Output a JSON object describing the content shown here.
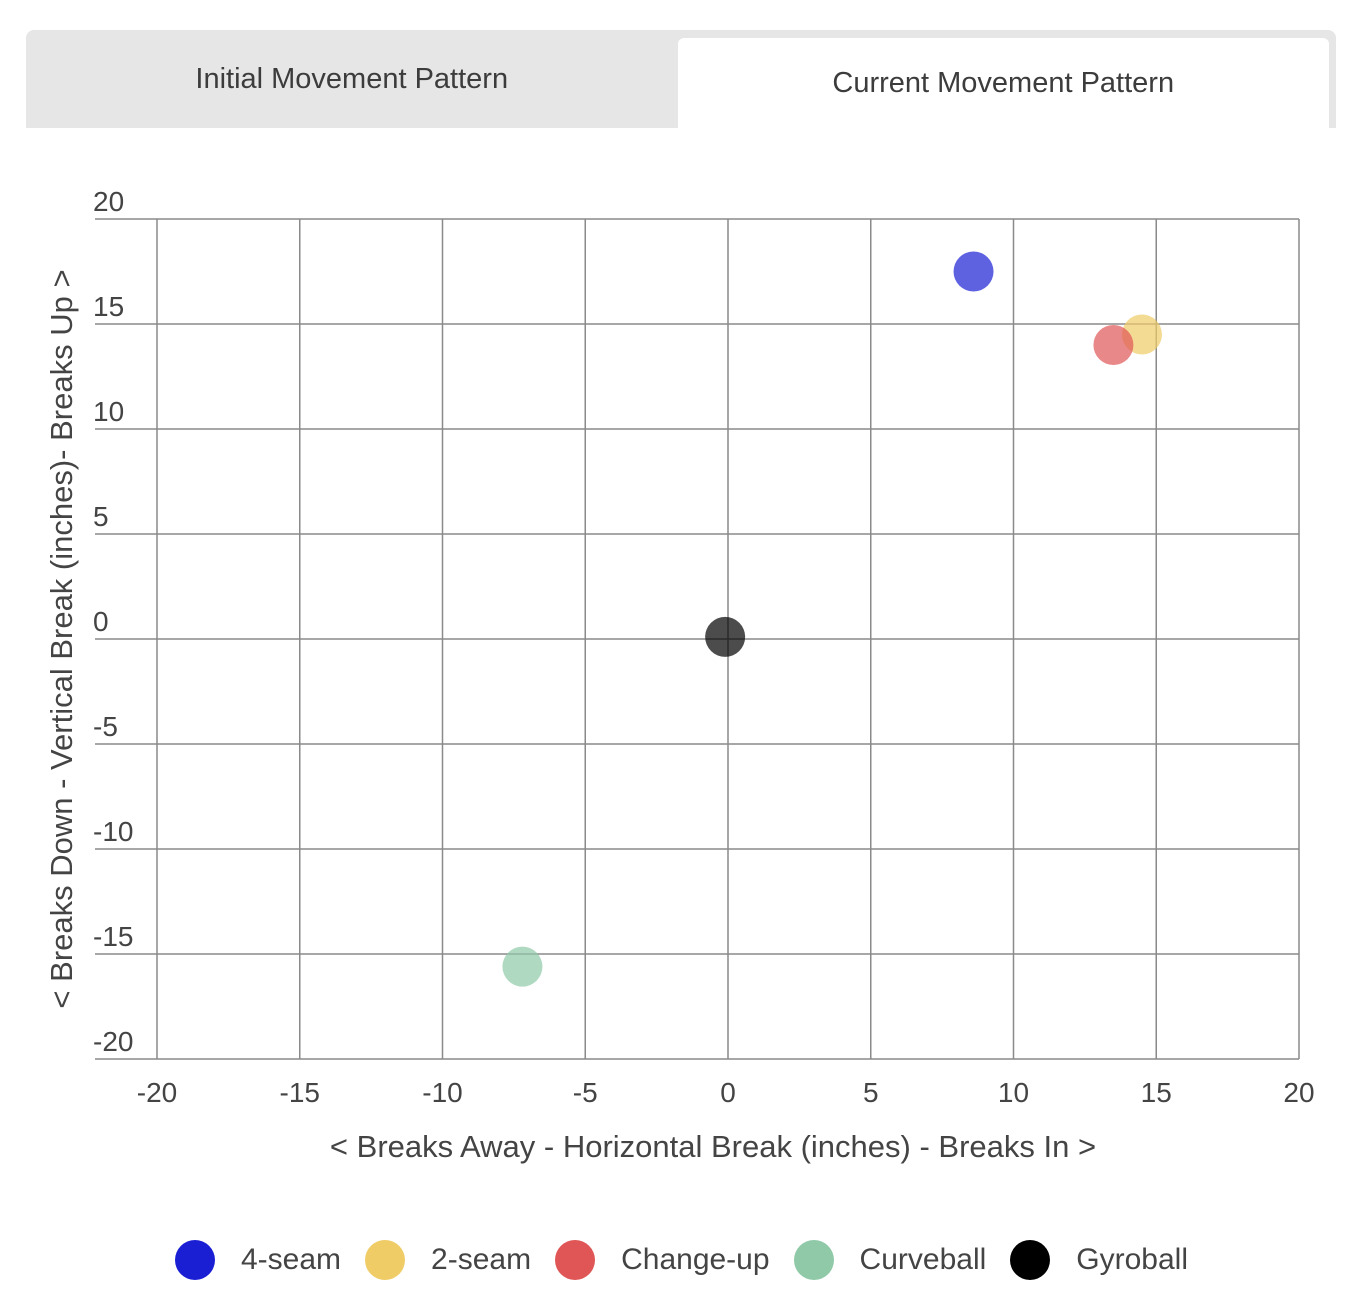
{
  "tabs": [
    {
      "label": "Initial Movement Pattern",
      "active": false
    },
    {
      "label": "Current Movement Pattern",
      "active": true
    }
  ],
  "chart_data": {
    "type": "scatter",
    "xlabel": "< Breaks Away - Horizontal Break (inches) - Breaks In >",
    "ylabel": "< Breaks Down - Vertical Break (inches)- Breaks Up >",
    "xlim": [
      -20,
      20
    ],
    "ylim": [
      -20,
      20
    ],
    "xticks": [
      -20,
      -15,
      -10,
      -5,
      0,
      5,
      10,
      15,
      20
    ],
    "yticks": [
      -20,
      -15,
      -10,
      -5,
      0,
      5,
      10,
      15,
      20
    ],
    "grid": true,
    "legend_position": "bottom",
    "series": [
      {
        "name": "4-seam",
        "color": "#1a1fd4",
        "points": [
          {
            "x": 8.6,
            "y": 17.5
          }
        ]
      },
      {
        "name": "2-seam",
        "color": "#f0cc66",
        "points": [
          {
            "x": 14.5,
            "y": 14.5
          }
        ]
      },
      {
        "name": "Change-up",
        "color": "#e05555",
        "points": [
          {
            "x": 13.5,
            "y": 14.0
          }
        ]
      },
      {
        "name": "Curveball",
        "color": "#8fc9a8",
        "points": [
          {
            "x": -7.2,
            "y": -15.6
          }
        ]
      },
      {
        "name": "Gyroball",
        "color": "#000000",
        "points": [
          {
            "x": -0.1,
            "y": 0.1
          }
        ]
      }
    ]
  }
}
